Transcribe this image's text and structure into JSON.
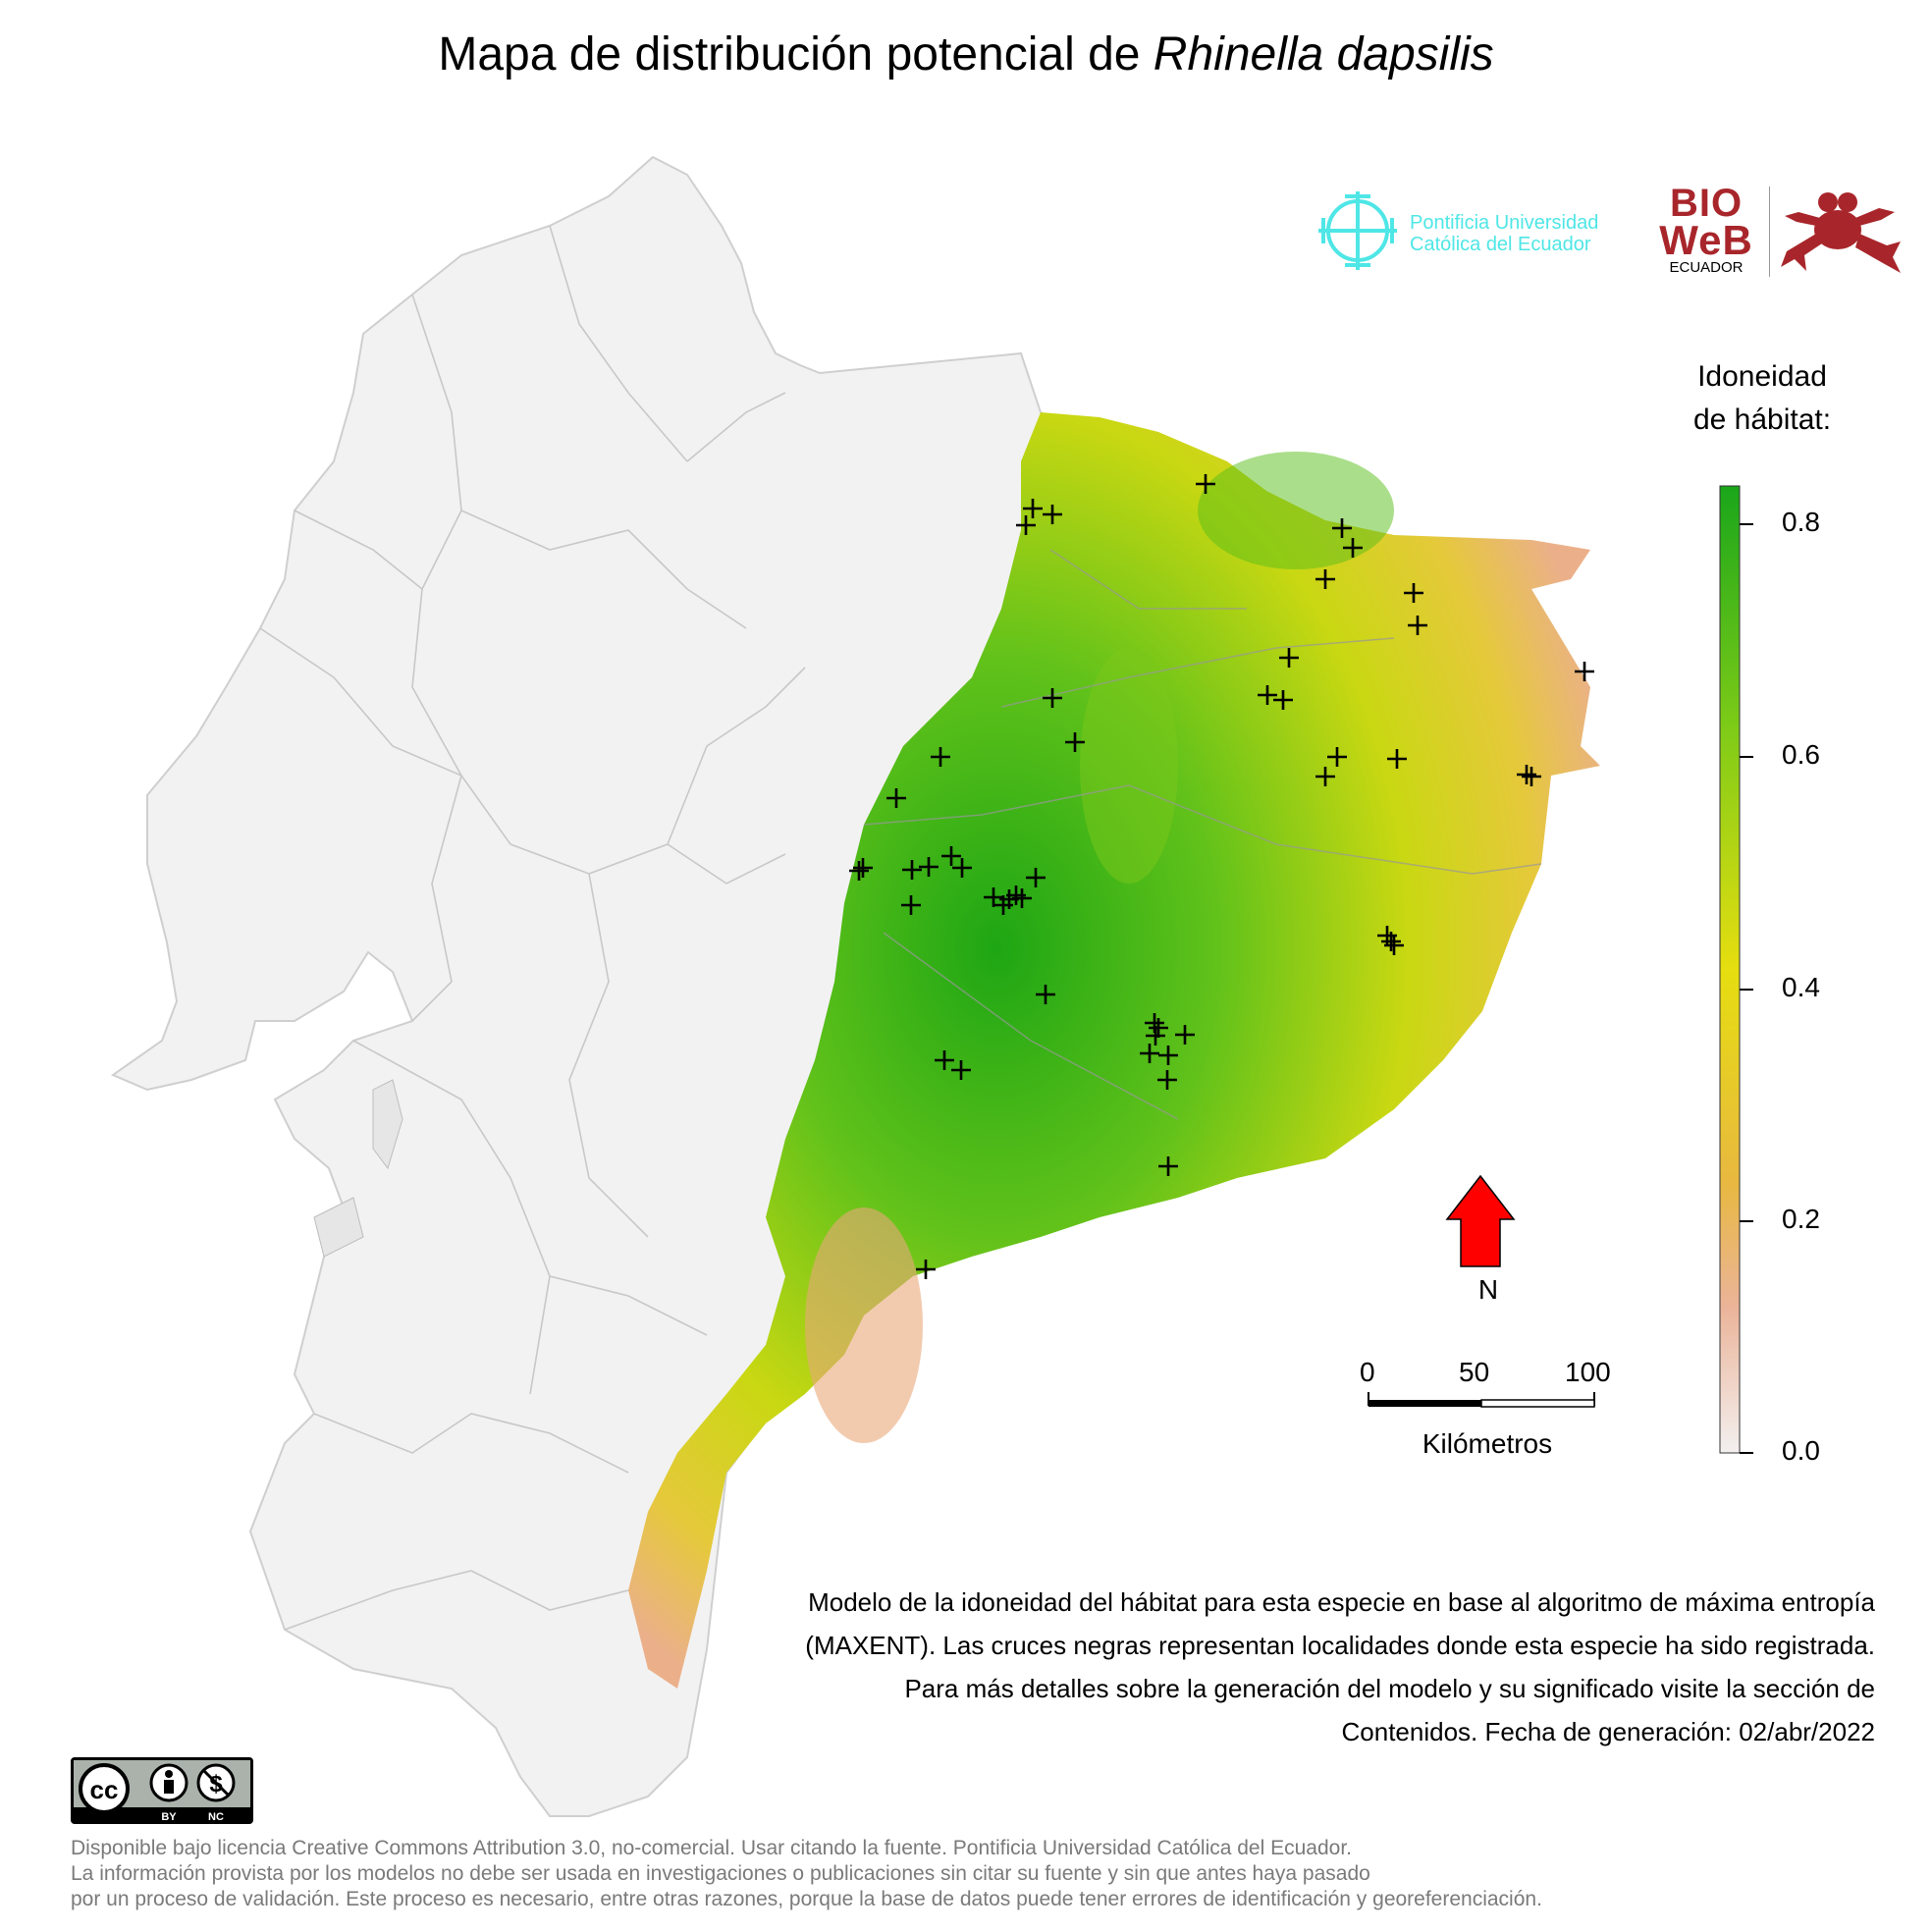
{
  "title": {
    "prefix": "Mapa de distribución potencial de ",
    "species": "Rhinella dapsilis"
  },
  "logos": {
    "puce_line1": "Pontificia Universidad",
    "puce_line2": "Católica del Ecuador",
    "bioweb_line1": "BIO",
    "bioweb_line2": "WeB",
    "bioweb_line3": "ECUADOR"
  },
  "legend": {
    "title_line1": "Idoneidad",
    "title_line2": "de hábitat:",
    "ticks": [
      "0.8",
      "0.6",
      "0.4",
      "0.2",
      "0.0"
    ],
    "color_high": "#2bab1f",
    "color_mid": "#e3dd10",
    "color_low": "#f2f2f2"
  },
  "north": {
    "label": "N",
    "color": "#ff0000"
  },
  "scale": {
    "labels": [
      "0",
      "50",
      "100"
    ],
    "unit": "Kilómetros"
  },
  "caption": "Modelo de la idoneidad del hábitat para esta especie en base al algoritmo de máxima entropía (MAXENT). Las cruces negras representan localidades donde esta especie ha sido registrada. Para más detalles sobre la generación del modelo y su significado visite la sección de Contenidos. Fecha de generación: 02/abr/2022",
  "cc_badge": {
    "by": "BY",
    "nc": "NC"
  },
  "license_lines": [
    "Disponible bajo licencia Creative Commons Attribution 3.0, no-comercial. Usar citando la fuente. Pontificia Universidad Católica del Ecuador.",
    "La información provista por los modelos no debe ser usada en investigaciones o publicaciones sin citar su fuente y sin que antes haya pasado",
    "por un proceso de validación. Este proceso es necesario, entre otras razones, porque la base de datos puede tener errores de identificación y georeferenciación."
  ]
}
